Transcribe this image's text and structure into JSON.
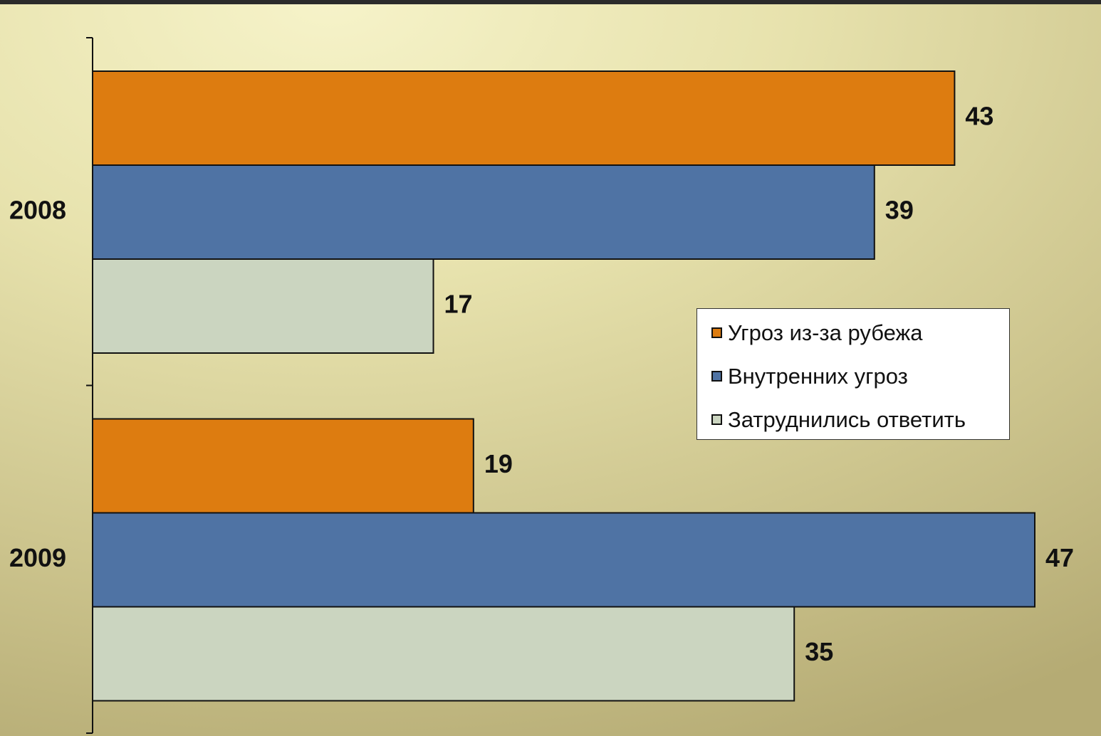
{
  "chart_data": {
    "type": "bar",
    "orientation": "horizontal",
    "categories": [
      "2008",
      "2009"
    ],
    "series": [
      {
        "name": "Угроз из-за рубежа",
        "values": [
          43,
          19
        ],
        "color": "#dd7c10"
      },
      {
        "name": "Внутренних угроз",
        "values": [
          39,
          47
        ],
        "color": "#4f73a4"
      },
      {
        "name": "Затруднились ответить",
        "values": [
          17,
          35
        ],
        "color": "#cbd5c0"
      }
    ],
    "data_labels": true,
    "legend_position": "right-middle",
    "grid": false,
    "xlim": [
      0,
      47
    ],
    "title": "",
    "xlabel": "",
    "ylabel": ""
  }
}
